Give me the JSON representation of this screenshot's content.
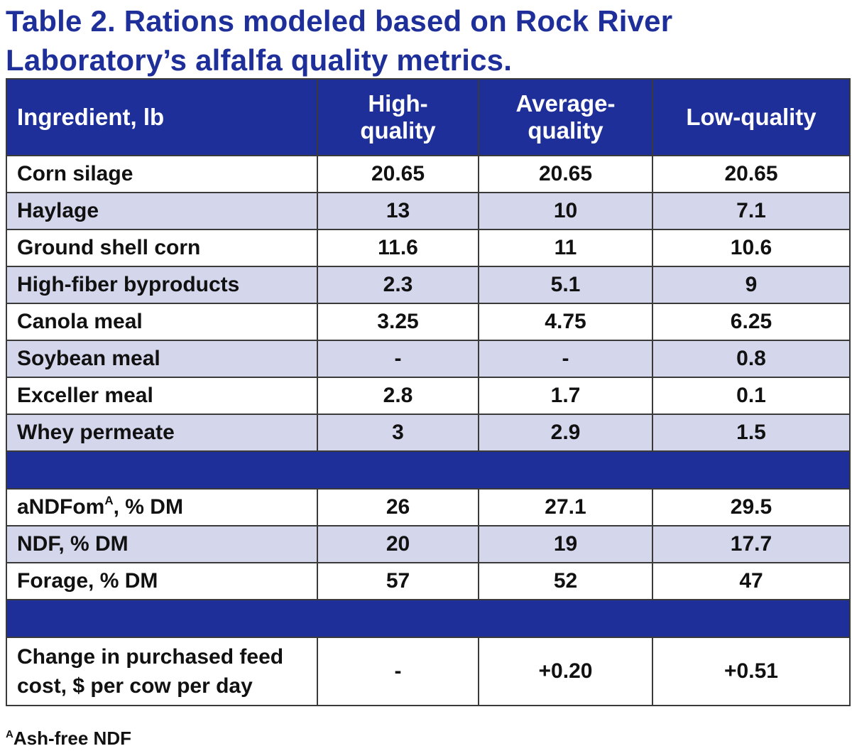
{
  "title": {
    "line1": "Table 2.  Rations modeled based on Rock River",
    "line2": "Laboratory’s alfalfa quality metrics."
  },
  "table": {
    "headers": {
      "ingredient": "Ingredient, lb",
      "high": {
        "line1": "High-",
        "line2": "quality"
      },
      "average": {
        "line1": "Average-",
        "line2": "quality"
      },
      "low": "Low-quality"
    },
    "ingredient_rows": [
      {
        "label": "Corn silage",
        "high": "20.65",
        "average": "20.65",
        "low": "20.65"
      },
      {
        "label": "Haylage",
        "high": "13",
        "average": "10",
        "low": "7.1"
      },
      {
        "label": "Ground shell corn",
        "high": "11.6",
        "average": "11",
        "low": "10.6"
      },
      {
        "label": "High-fiber byproducts",
        "high": "2.3",
        "average": "5.1",
        "low": "9"
      },
      {
        "label": "Canola meal",
        "high": "3.25",
        "average": "4.75",
        "low": "6.25"
      },
      {
        "label": "Soybean meal",
        "high": "-",
        "average": "-",
        "low": "0.8"
      },
      {
        "label": "Exceller meal",
        "high": "2.8",
        "average": "1.7",
        "low": "0.1"
      },
      {
        "label": "Whey permeate",
        "high": "3",
        "average": "2.9",
        "low": "1.5"
      }
    ],
    "composition_rows": [
      {
        "label_main": "aNDFom",
        "label_sup": "A",
        "label_rest": ", % DM",
        "high": "26",
        "average": "27.1",
        "low": "29.5"
      },
      {
        "label": "NDF, % DM",
        "high": "20",
        "average": "19",
        "low": "17.7"
      },
      {
        "label": "Forage, % DM",
        "high": "57",
        "average": "52",
        "low": "47"
      }
    ],
    "cost_row": {
      "label_line1": "Change in purchased feed",
      "label_line2": "cost, $ per cow per day",
      "high": "-",
      "average": "+0.20",
      "low": "+0.51"
    },
    "colors": {
      "header_blue": "#1f2f9a",
      "stripe": "#d4d7ec",
      "title": "#1f2f9a"
    }
  },
  "footnote": {
    "marker": "A",
    "text": "Ash-free NDF"
  }
}
